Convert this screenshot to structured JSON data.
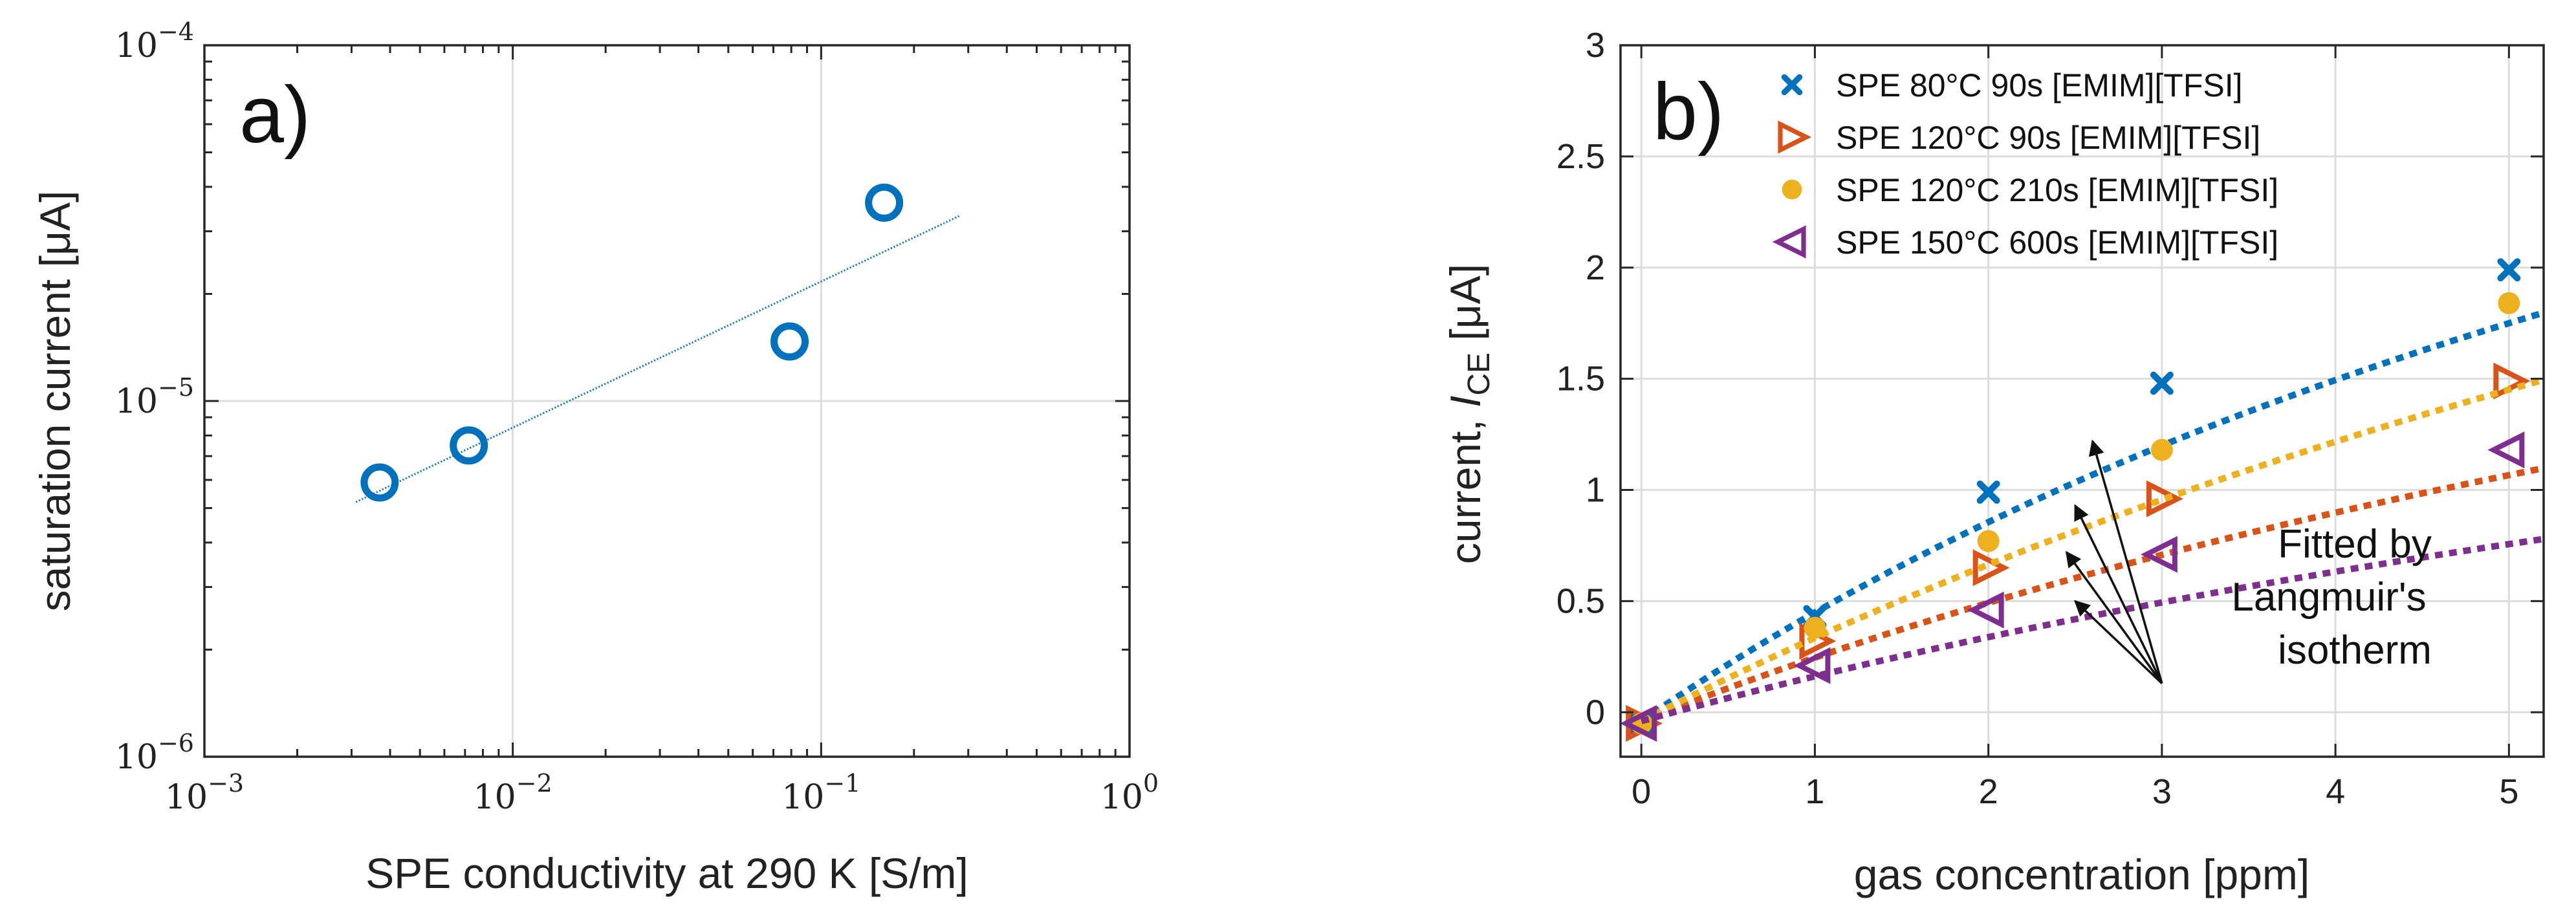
{
  "chart_data": [
    {
      "panel": "a)",
      "type": "scatter",
      "xscale": "log",
      "yscale": "log",
      "xlim": [
        0.001,
        1
      ],
      "ylim": [
        1e-06,
        0.0001
      ],
      "xlabel": "SPE conductivity at 290 K [S/m]",
      "ylabel": "saturation current [μA]",
      "xticks": [
        {
          "value": 0.001,
          "base": "10",
          "exp": "−3"
        },
        {
          "value": 0.01,
          "base": "10",
          "exp": "−2"
        },
        {
          "value": 0.1,
          "base": "10",
          "exp": "−1"
        },
        {
          "value": 1,
          "base": "10",
          "exp": "0"
        }
      ],
      "yticks": [
        {
          "value": 1e-06,
          "base": "10",
          "exp": "−6"
        },
        {
          "value": 1e-05,
          "base": "10",
          "exp": "−5"
        },
        {
          "value": 0.0001,
          "base": "10",
          "exp": "−4"
        }
      ],
      "grid": true,
      "points": {
        "x": [
          0.0037,
          0.0072,
          0.079,
          0.16
        ],
        "y": [
          5.9e-06,
          7.5e-06,
          1.47e-05,
          3.61e-05
        ]
      },
      "fit": {
        "x": [
          0.0031,
          0.28
        ],
        "y": [
          5.2e-06,
          3.31e-05
        ]
      },
      "color": "#0072BD"
    },
    {
      "panel": "b)",
      "type": "scatter",
      "xlim": [
        -0.12,
        5.2
      ],
      "ylim": [
        -0.2,
        3
      ],
      "xlabel": "gas concentration [ppm]",
      "ylabel": "current, ",
      "ylabel_symbol": "I",
      "ylabel_subscript": "CE",
      "ylabel_unit": " [μA]",
      "xticks": [
        "0",
        "1",
        "2",
        "3",
        "4",
        "5"
      ],
      "yticks": [
        "0",
        "0.5",
        "1",
        "1.5",
        "2",
        "2.5",
        "3"
      ],
      "grid": true,
      "legend_position": "top-left",
      "series": [
        {
          "name": "SPE 80°C 90s [EMIM][TFSI]",
          "marker": "x",
          "color": "#0072BD",
          "x": [
            0,
            1,
            2,
            3,
            5
          ],
          "y": [
            -0.05,
            0.43,
            0.99,
            1.48,
            1.99
          ],
          "fit": {
            "a": 5.37,
            "b": 0.1
          }
        },
        {
          "name": "SPE 120°C 90s [EMIM][TFSI]",
          "marker": "triangle-right",
          "color": "#D95319",
          "x": [
            0,
            1,
            2,
            3,
            5
          ],
          "y": [
            -0.05,
            0.32,
            0.65,
            0.96,
            1.49
          ],
          "fit": {
            "a": 3.94,
            "b": 0.0781
          }
        },
        {
          "name": "SPE 120°C 210s [EMIM][TFSI]",
          "marker": "circle-filled",
          "color": "#EDB120",
          "x": [
            0,
            1,
            2,
            3,
            5
          ],
          "y": [
            -0.05,
            0.38,
            0.77,
            1.18,
            1.84
          ],
          "fit": {
            "a": 5.85,
            "b": 0.0684
          }
        },
        {
          "name": "SPE 150°C 600s [EMIM][TFSI]",
          "marker": "triangle-left",
          "color": "#7E2F8E",
          "x": [
            0,
            1,
            2,
            3,
            5
          ],
          "y": [
            -0.05,
            0.21,
            0.46,
            0.71,
            1.18
          ],
          "fit": {
            "a": 3.03,
            "b": 0.0713
          }
        }
      ],
      "annotation": {
        "lines": [
          "Fitted by",
          "Langmuir's",
          "isotherm"
        ],
        "arrow_origin": {
          "x": 3,
          "y": 0.13
        },
        "arrow_targets": [
          {
            "x": 2.6,
            "y": 1.22
          },
          {
            "x": 2.5,
            "y": 0.93
          },
          {
            "x": 2.45,
            "y": 0.72
          },
          {
            "x": 2.5,
            "y": 0.5
          }
        ]
      }
    }
  ]
}
